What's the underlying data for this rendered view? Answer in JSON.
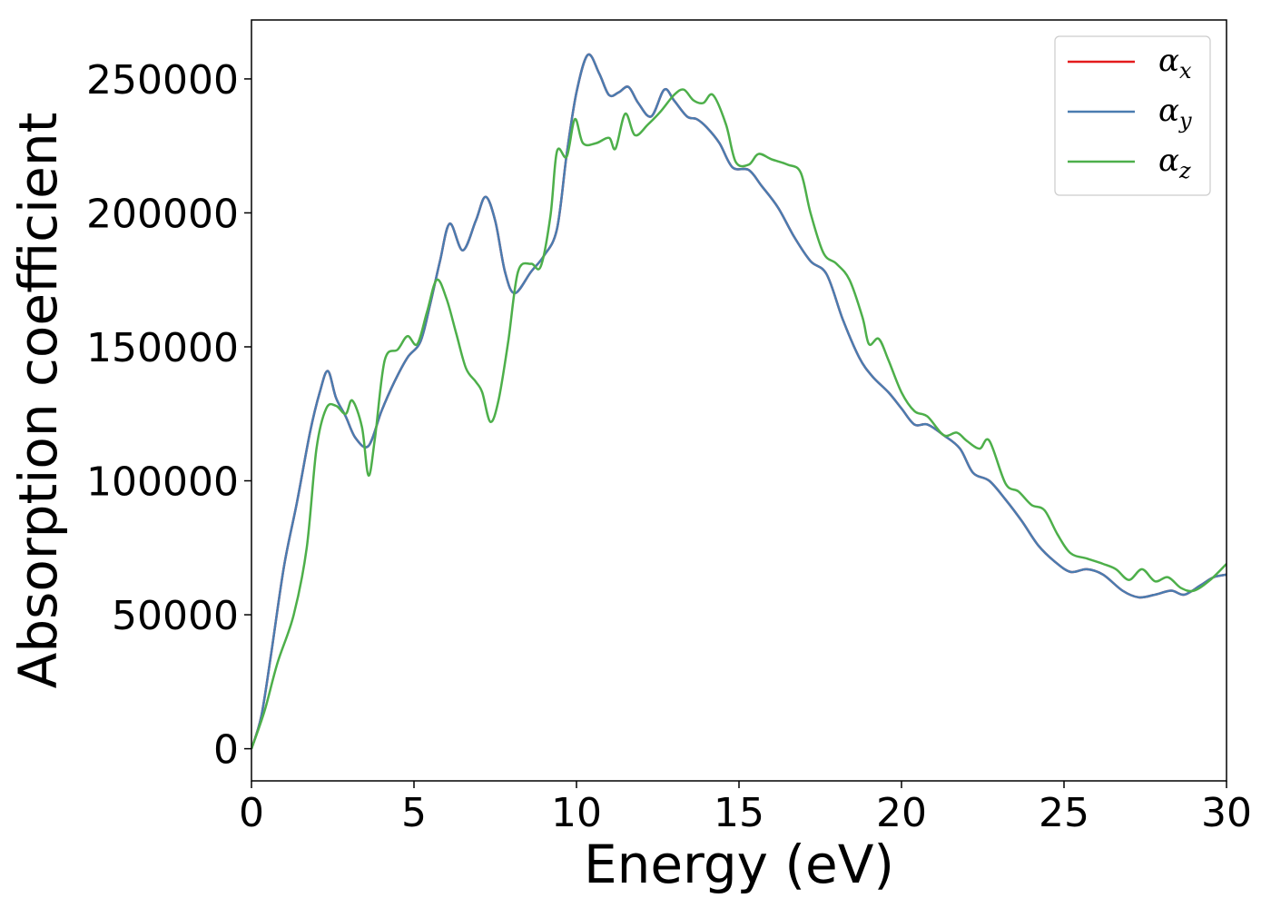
{
  "chart_data": {
    "type": "line",
    "title": "",
    "xlabel": "Energy (eV)",
    "ylabel": "Absorption coefficient",
    "xlim": [
      0,
      30
    ],
    "ylim": [
      -12000,
      272000
    ],
    "xticks": [
      0,
      5,
      10,
      15,
      20,
      25,
      30
    ],
    "yticks": [
      0,
      50000,
      100000,
      150000,
      200000,
      250000
    ],
    "grid": false,
    "legend": "top-right",
    "series": [
      {
        "name": "α",
        "subscript": "x",
        "color": "#e41a1c",
        "points": [
          [
            0,
            0
          ],
          [
            0.3,
            12000
          ],
          [
            0.6,
            35000
          ],
          [
            1.0,
            68000
          ],
          [
            1.4,
            92000
          ],
          [
            1.8,
            118000
          ],
          [
            2.1,
            133000
          ],
          [
            2.35,
            141000
          ],
          [
            2.6,
            131000
          ],
          [
            2.9,
            124000
          ],
          [
            3.2,
            116000
          ],
          [
            3.6,
            113000
          ],
          [
            4.0,
            126000
          ],
          [
            4.4,
            137000
          ],
          [
            4.8,
            146000
          ],
          [
            5.2,
            152000
          ],
          [
            5.5,
            166000
          ],
          [
            5.8,
            182000
          ],
          [
            6.1,
            196000
          ],
          [
            6.5,
            186000
          ],
          [
            6.9,
            197000
          ],
          [
            7.2,
            206000
          ],
          [
            7.5,
            197000
          ],
          [
            7.8,
            178000
          ],
          [
            8.1,
            170000
          ],
          [
            8.6,
            178000
          ],
          [
            9.0,
            184000
          ],
          [
            9.4,
            194000
          ],
          [
            9.7,
            222000
          ],
          [
            10.0,
            245000
          ],
          [
            10.35,
            259000
          ],
          [
            10.7,
            252000
          ],
          [
            11.0,
            244000
          ],
          [
            11.3,
            245000
          ],
          [
            11.6,
            247000
          ],
          [
            11.9,
            241000
          ],
          [
            12.3,
            236000
          ],
          [
            12.7,
            246000
          ],
          [
            13.0,
            242000
          ],
          [
            13.4,
            236000
          ],
          [
            13.7,
            235000
          ],
          [
            14.0,
            232000
          ],
          [
            14.4,
            226000
          ],
          [
            14.8,
            217000
          ],
          [
            15.3,
            216000
          ],
          [
            15.7,
            210000
          ],
          [
            16.2,
            202000
          ],
          [
            16.7,
            191000
          ],
          [
            17.2,
            182000
          ],
          [
            17.7,
            177000
          ],
          [
            18.2,
            160000
          ],
          [
            18.7,
            146000
          ],
          [
            19.1,
            139000
          ],
          [
            19.6,
            133000
          ],
          [
            20.0,
            127000
          ],
          [
            20.4,
            121000
          ],
          [
            20.8,
            121000
          ],
          [
            21.3,
            117000
          ],
          [
            21.8,
            112000
          ],
          [
            22.2,
            103000
          ],
          [
            22.7,
            100000
          ],
          [
            23.2,
            93000
          ],
          [
            23.7,
            85000
          ],
          [
            24.2,
            76000
          ],
          [
            24.7,
            70000
          ],
          [
            25.2,
            66000
          ],
          [
            25.7,
            67000
          ],
          [
            26.2,
            65000
          ],
          [
            26.8,
            59000
          ],
          [
            27.3,
            56500
          ],
          [
            27.8,
            57500
          ],
          [
            28.3,
            59000
          ],
          [
            28.7,
            57500
          ],
          [
            29.2,
            61000
          ],
          [
            29.6,
            64000
          ],
          [
            30,
            65000
          ]
        ]
      },
      {
        "name": "α",
        "subscript": "y",
        "color": "#4a7cb0",
        "points": [
          [
            0,
            0
          ],
          [
            0.3,
            12000
          ],
          [
            0.6,
            35000
          ],
          [
            1.0,
            68000
          ],
          [
            1.4,
            92000
          ],
          [
            1.8,
            118000
          ],
          [
            2.1,
            133000
          ],
          [
            2.35,
            141000
          ],
          [
            2.6,
            131000
          ],
          [
            2.9,
            124000
          ],
          [
            3.2,
            116000
          ],
          [
            3.6,
            113000
          ],
          [
            4.0,
            126000
          ],
          [
            4.4,
            137000
          ],
          [
            4.8,
            146000
          ],
          [
            5.2,
            152000
          ],
          [
            5.5,
            166000
          ],
          [
            5.8,
            182000
          ],
          [
            6.1,
            196000
          ],
          [
            6.5,
            186000
          ],
          [
            6.9,
            197000
          ],
          [
            7.2,
            206000
          ],
          [
            7.5,
            197000
          ],
          [
            7.8,
            178000
          ],
          [
            8.1,
            170000
          ],
          [
            8.6,
            178000
          ],
          [
            9.0,
            184000
          ],
          [
            9.4,
            194000
          ],
          [
            9.7,
            222000
          ],
          [
            10.0,
            245000
          ],
          [
            10.35,
            259000
          ],
          [
            10.7,
            252000
          ],
          [
            11.0,
            244000
          ],
          [
            11.3,
            245000
          ],
          [
            11.6,
            247000
          ],
          [
            11.9,
            241000
          ],
          [
            12.3,
            236000
          ],
          [
            12.7,
            246000
          ],
          [
            13.0,
            242000
          ],
          [
            13.4,
            236000
          ],
          [
            13.7,
            235000
          ],
          [
            14.0,
            232000
          ],
          [
            14.4,
            226000
          ],
          [
            14.8,
            217000
          ],
          [
            15.3,
            216000
          ],
          [
            15.7,
            210000
          ],
          [
            16.2,
            202000
          ],
          [
            16.7,
            191000
          ],
          [
            17.2,
            182000
          ],
          [
            17.7,
            177000
          ],
          [
            18.2,
            160000
          ],
          [
            18.7,
            146000
          ],
          [
            19.1,
            139000
          ],
          [
            19.6,
            133000
          ],
          [
            20.0,
            127000
          ],
          [
            20.4,
            121000
          ],
          [
            20.8,
            121000
          ],
          [
            21.3,
            117000
          ],
          [
            21.8,
            112000
          ],
          [
            22.2,
            103000
          ],
          [
            22.7,
            100000
          ],
          [
            23.2,
            93000
          ],
          [
            23.7,
            85000
          ],
          [
            24.2,
            76000
          ],
          [
            24.7,
            70000
          ],
          [
            25.2,
            66000
          ],
          [
            25.7,
            67000
          ],
          [
            26.2,
            65000
          ],
          [
            26.8,
            59000
          ],
          [
            27.3,
            56500
          ],
          [
            27.8,
            57500
          ],
          [
            28.3,
            59000
          ],
          [
            28.7,
            57500
          ],
          [
            29.2,
            61000
          ],
          [
            29.6,
            64000
          ],
          [
            30,
            65000
          ]
        ]
      },
      {
        "name": "α",
        "subscript": "z",
        "color": "#4daf4a",
        "points": [
          [
            0,
            0
          ],
          [
            0.4,
            14000
          ],
          [
            0.8,
            32000
          ],
          [
            1.3,
            50000
          ],
          [
            1.7,
            75000
          ],
          [
            2.0,
            112000
          ],
          [
            2.3,
            127000
          ],
          [
            2.6,
            128000
          ],
          [
            2.9,
            125000
          ],
          [
            3.1,
            130000
          ],
          [
            3.4,
            120000
          ],
          [
            3.6,
            102000
          ],
          [
            3.8,
            116000
          ],
          [
            4.1,
            145000
          ],
          [
            4.5,
            149000
          ],
          [
            4.8,
            154000
          ],
          [
            5.1,
            151000
          ],
          [
            5.4,
            163000
          ],
          [
            5.7,
            175000
          ],
          [
            6.0,
            168000
          ],
          [
            6.3,
            155000
          ],
          [
            6.6,
            142000
          ],
          [
            6.9,
            137000
          ],
          [
            7.1,
            133000
          ],
          [
            7.35,
            122000
          ],
          [
            7.6,
            130000
          ],
          [
            7.9,
            152000
          ],
          [
            8.2,
            178000
          ],
          [
            8.6,
            181000
          ],
          [
            8.9,
            180000
          ],
          [
            9.2,
            199000
          ],
          [
            9.4,
            223000
          ],
          [
            9.7,
            221000
          ],
          [
            9.95,
            235000
          ],
          [
            10.2,
            226000
          ],
          [
            10.6,
            226000
          ],
          [
            11.0,
            228000
          ],
          [
            11.2,
            224000
          ],
          [
            11.5,
            237000
          ],
          [
            11.8,
            229000
          ],
          [
            12.2,
            233000
          ],
          [
            12.6,
            238000
          ],
          [
            13.0,
            244000
          ],
          [
            13.3,
            246000
          ],
          [
            13.6,
            242000
          ],
          [
            13.9,
            241000
          ],
          [
            14.2,
            244000
          ],
          [
            14.6,
            233000
          ],
          [
            14.9,
            219000
          ],
          [
            15.3,
            218000
          ],
          [
            15.6,
            222000
          ],
          [
            16.0,
            220000
          ],
          [
            16.5,
            218000
          ],
          [
            16.9,
            215000
          ],
          [
            17.2,
            200000
          ],
          [
            17.6,
            185000
          ],
          [
            18.0,
            181000
          ],
          [
            18.4,
            175000
          ],
          [
            18.8,
            161000
          ],
          [
            19.0,
            151000
          ],
          [
            19.3,
            153000
          ],
          [
            19.6,
            145000
          ],
          [
            20.0,
            133000
          ],
          [
            20.4,
            126000
          ],
          [
            20.8,
            124000
          ],
          [
            21.3,
            117000
          ],
          [
            21.7,
            118000
          ],
          [
            22.0,
            115000
          ],
          [
            22.4,
            112000
          ],
          [
            22.7,
            115000
          ],
          [
            23.2,
            99000
          ],
          [
            23.6,
            96000
          ],
          [
            24.0,
            91000
          ],
          [
            24.4,
            89000
          ],
          [
            24.8,
            80000
          ],
          [
            25.2,
            73000
          ],
          [
            25.7,
            71000
          ],
          [
            26.2,
            69000
          ],
          [
            26.6,
            67000
          ],
          [
            27.0,
            63000
          ],
          [
            27.4,
            67000
          ],
          [
            27.8,
            62500
          ],
          [
            28.2,
            64000
          ],
          [
            28.6,
            60000
          ],
          [
            29.0,
            59000
          ],
          [
            29.5,
            63000
          ],
          [
            30,
            69000
          ]
        ]
      }
    ]
  }
}
